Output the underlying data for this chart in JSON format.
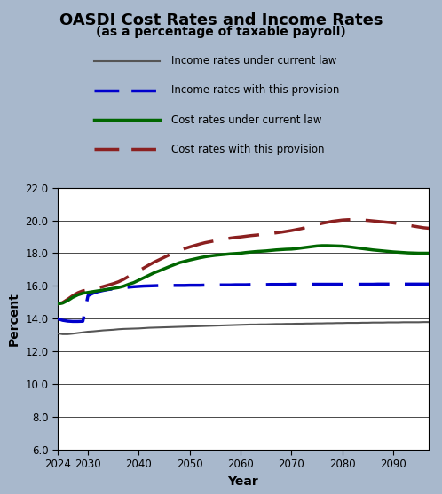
{
  "title": "OASDI Cost Rates and Income Rates",
  "subtitle": "(as a percentage of taxable payroll)",
  "xlabel": "Year",
  "ylabel": "Percent",
  "bg_color": "#a8b8cc",
  "plot_bg_color": "#ffffff",
  "ylim": [
    6.0,
    22.0
  ],
  "yticks": [
    6.0,
    8.0,
    10.0,
    12.0,
    14.0,
    16.0,
    18.0,
    20.0,
    22.0
  ],
  "xticks": [
    2024,
    2030,
    2040,
    2050,
    2060,
    2070,
    2080,
    2090
  ],
  "xlim": [
    2024,
    2097
  ],
  "years": [
    2024,
    2025,
    2026,
    2027,
    2028,
    2029,
    2030,
    2031,
    2032,
    2033,
    2034,
    2035,
    2036,
    2037,
    2038,
    2039,
    2040,
    2041,
    2042,
    2043,
    2044,
    2045,
    2046,
    2047,
    2048,
    2049,
    2050,
    2051,
    2052,
    2053,
    2054,
    2055,
    2056,
    2057,
    2058,
    2059,
    2060,
    2061,
    2062,
    2063,
    2064,
    2065,
    2066,
    2067,
    2068,
    2069,
    2070,
    2071,
    2072,
    2073,
    2074,
    2075,
    2076,
    2077,
    2078,
    2079,
    2080,
    2081,
    2082,
    2083,
    2084,
    2085,
    2086,
    2087,
    2088,
    2089,
    2090,
    2091,
    2092,
    2093,
    2094,
    2095,
    2096,
    2097
  ],
  "income_current_law": [
    13.1,
    13.05,
    13.05,
    13.08,
    13.12,
    13.16,
    13.2,
    13.22,
    13.25,
    13.28,
    13.3,
    13.32,
    13.35,
    13.37,
    13.38,
    13.39,
    13.4,
    13.42,
    13.44,
    13.45,
    13.46,
    13.47,
    13.48,
    13.49,
    13.5,
    13.51,
    13.52,
    13.53,
    13.54,
    13.55,
    13.56,
    13.57,
    13.58,
    13.59,
    13.6,
    13.61,
    13.62,
    13.63,
    13.64,
    13.64,
    13.65,
    13.65,
    13.66,
    13.67,
    13.67,
    13.68,
    13.68,
    13.69,
    13.69,
    13.7,
    13.7,
    13.71,
    13.71,
    13.72,
    13.72,
    13.73,
    13.73,
    13.74,
    13.74,
    13.74,
    13.75,
    13.75,
    13.76,
    13.76,
    13.76,
    13.77,
    13.77,
    13.77,
    13.78,
    13.78,
    13.78,
    13.78,
    13.79,
    13.79
  ],
  "income_provision": [
    14.0,
    13.9,
    13.85,
    13.83,
    13.83,
    13.84,
    15.4,
    15.55,
    15.65,
    15.72,
    15.78,
    15.82,
    15.86,
    15.89,
    15.92,
    15.95,
    15.97,
    15.99,
    16.0,
    16.01,
    16.02,
    16.03,
    16.03,
    16.03,
    16.03,
    16.03,
    16.04,
    16.04,
    16.04,
    16.05,
    16.05,
    16.05,
    16.06,
    16.06,
    16.06,
    16.07,
    16.07,
    16.07,
    16.08,
    16.08,
    16.08,
    16.08,
    16.09,
    16.09,
    16.09,
    16.09,
    16.1,
    16.1,
    16.1,
    16.1,
    16.1,
    16.1,
    16.1,
    16.1,
    16.1,
    16.1,
    16.1,
    16.1,
    16.1,
    16.1,
    16.1,
    16.1,
    16.1,
    16.11,
    16.11,
    16.11,
    16.11,
    16.11,
    16.11,
    16.11,
    16.11,
    16.11,
    16.11,
    16.11
  ],
  "cost_current_law": [
    14.9,
    14.95,
    15.1,
    15.3,
    15.45,
    15.55,
    15.6,
    15.65,
    15.7,
    15.75,
    15.8,
    15.85,
    15.9,
    15.98,
    16.1,
    16.2,
    16.35,
    16.5,
    16.65,
    16.8,
    16.92,
    17.05,
    17.18,
    17.3,
    17.42,
    17.5,
    17.58,
    17.65,
    17.72,
    17.78,
    17.83,
    17.87,
    17.9,
    17.93,
    17.96,
    17.98,
    18.0,
    18.04,
    18.07,
    18.1,
    18.12,
    18.14,
    18.17,
    18.2,
    18.22,
    18.24,
    18.25,
    18.28,
    18.32,
    18.36,
    18.4,
    18.44,
    18.46,
    18.46,
    18.45,
    18.44,
    18.43,
    18.4,
    18.36,
    18.32,
    18.28,
    18.24,
    18.2,
    18.17,
    18.14,
    18.11,
    18.08,
    18.06,
    18.04,
    18.02,
    18.01,
    18.0,
    18.0,
    18.0
  ],
  "cost_provision": [
    14.9,
    14.98,
    15.18,
    15.4,
    15.58,
    15.7,
    15.75,
    15.8,
    15.88,
    15.96,
    16.05,
    16.14,
    16.25,
    16.4,
    16.58,
    16.75,
    16.92,
    17.1,
    17.28,
    17.45,
    17.6,
    17.75,
    17.9,
    18.04,
    18.17,
    18.28,
    18.38,
    18.47,
    18.56,
    18.64,
    18.7,
    18.76,
    18.82,
    18.87,
    18.92,
    18.96,
    18.99,
    19.03,
    19.07,
    19.1,
    19.13,
    19.16,
    19.2,
    19.24,
    19.28,
    19.33,
    19.38,
    19.44,
    19.5,
    19.58,
    19.66,
    19.74,
    19.82,
    19.88,
    19.94,
    19.98,
    20.02,
    20.04,
    20.05,
    20.04,
    20.02,
    20.0,
    19.97,
    19.94,
    19.91,
    19.88,
    19.85,
    19.8,
    19.75,
    19.7,
    19.65,
    19.6,
    19.55,
    19.52
  ],
  "legend_entries": [
    {
      "label": "Income rates under current law",
      "color": "#555555",
      "linestyle": "solid",
      "linewidth": 1.5
    },
    {
      "label": "Income rates with this provision",
      "color": "#0000cc",
      "linestyle": "dashed",
      "linewidth": 2.5
    },
    {
      "label": "Cost rates under current law",
      "color": "#006600",
      "linestyle": "solid",
      "linewidth": 2.5
    },
    {
      "label": "Cost rates with this provision",
      "color": "#8b2020",
      "linestyle": "dashed",
      "linewidth": 2.5
    }
  ]
}
